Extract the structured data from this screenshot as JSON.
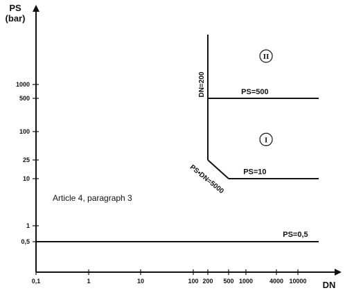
{
  "chart_data": {
    "type": "line",
    "x_scale": "log",
    "y_scale": "log",
    "xlabel": "DN",
    "ylabel": [
      "PS",
      "(bar)"
    ],
    "xlim": [
      0.1,
      30000
    ],
    "ylim": [
      0.1,
      10000
    ],
    "grid": false,
    "x_ticks": [
      {
        "value": 0.1,
        "label": "0,1"
      },
      {
        "value": 1,
        "label": "1"
      },
      {
        "value": 10,
        "label": "10"
      },
      {
        "value": 100,
        "label": "100"
      },
      {
        "value": 200,
        "label": "200"
      },
      {
        "value": 500,
        "label": "500"
      },
      {
        "value": 1000,
        "label": "1000"
      },
      {
        "value": 4000,
        "label": "4000"
      },
      {
        "value": 10000,
        "label": "10000"
      }
    ],
    "y_ticks": [
      {
        "value": 0.5,
        "label": "0,5"
      },
      {
        "value": 1,
        "label": "1"
      },
      {
        "value": 10,
        "label": "10"
      },
      {
        "value": 25,
        "label": "25"
      },
      {
        "value": 100,
        "label": "100"
      },
      {
        "value": 500,
        "label": "500"
      },
      {
        "value": 1000,
        "label": "1000"
      }
    ],
    "series": [
      {
        "name": "PS=0,5",
        "points": [
          [
            0.1,
            0.5
          ],
          [
            25000,
            0.5
          ]
        ]
      },
      {
        "name": "DN=200",
        "points": [
          [
            200,
            25
          ],
          [
            200,
            5000
          ]
        ]
      },
      {
        "name": "PS=500",
        "points": [
          [
            200,
            500
          ],
          [
            25000,
            500
          ]
        ]
      },
      {
        "name": "PS·DN=5000",
        "points": [
          [
            200,
            25
          ],
          [
            500,
            10
          ]
        ]
      },
      {
        "name": "PS=10",
        "points": [
          [
            500,
            10
          ],
          [
            25000,
            10
          ]
        ]
      }
    ],
    "annotations": [
      {
        "text": "PS=500",
        "x": 1500,
        "y": 620
      },
      {
        "text": "PS=10",
        "x": 1500,
        "y": 12.5
      },
      {
        "text": "PS=0,5",
        "x": 9000,
        "y": 0.62
      },
      {
        "text": "DN=200",
        "x": 165,
        "y": 1000,
        "rotate": -90
      },
      {
        "text": "PS•DN=5000",
        "x": 180,
        "y": 9,
        "rotate": 39
      },
      {
        "text": "II",
        "x": 2500,
        "y": 2500,
        "circled": true
      },
      {
        "text": "I",
        "x": 2500,
        "y": 68,
        "circled": true
      }
    ],
    "note": "Article 4, paragraph 3"
  }
}
